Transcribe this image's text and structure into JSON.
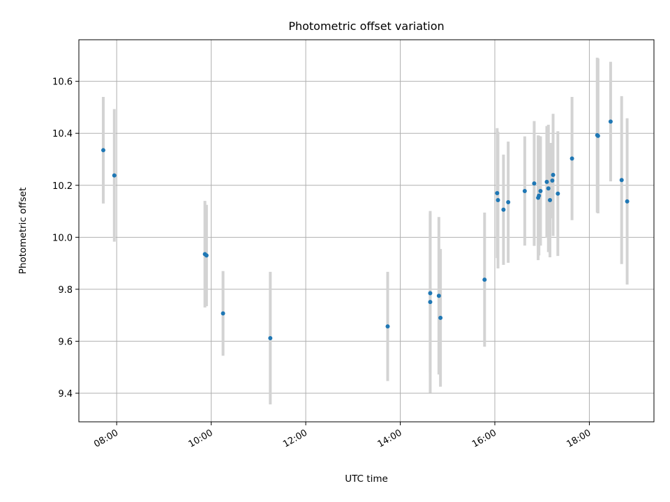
{
  "chart_data": {
    "type": "scatter",
    "title": "Photometric offset variation",
    "xlabel": "UTC time",
    "ylabel": "Photometric offset",
    "x_unit": "HH:MM",
    "x_ticks": [
      "08:00",
      "10:00",
      "12:00",
      "14:00",
      "16:00",
      "18:00"
    ],
    "y_ticks": [
      "9.4",
      "9.6",
      "9.8",
      "10.0",
      "10.2",
      "10.4",
      "10.6"
    ],
    "xlim": [
      "07:12",
      "19:22"
    ],
    "ylim": [
      9.29,
      10.76
    ],
    "grid": true,
    "marker_color": "#1f77b4",
    "errorbar_color": "#d3d3d3",
    "points": [
      {
        "x": "07:43",
        "y": 10.335,
        "err": 0.205
      },
      {
        "x": "07:57",
        "y": 10.238,
        "err": 0.255
      },
      {
        "x": "09:52",
        "y": 9.935,
        "err": 0.205
      },
      {
        "x": "09:54",
        "y": 9.93,
        "err": 0.195
      },
      {
        "x": "10:15",
        "y": 9.707,
        "err": 0.163
      },
      {
        "x": "11:15",
        "y": 9.612,
        "err": 0.255
      },
      {
        "x": "13:44",
        "y": 9.657,
        "err": 0.21
      },
      {
        "x": "14:38",
        "y": 9.785,
        "err": 0.305
      },
      {
        "x": "14:38",
        "y": 9.751,
        "err": 0.35
      },
      {
        "x": "14:49",
        "y": 9.775,
        "err": 0.303
      },
      {
        "x": "14:51",
        "y": 9.69,
        "err": 0.265
      },
      {
        "x": "15:47",
        "y": 9.837,
        "err": 0.258
      },
      {
        "x": "16:03",
        "y": 10.17,
        "err": 0.25
      },
      {
        "x": "16:04",
        "y": 10.143,
        "err": 0.263
      },
      {
        "x": "16:11",
        "y": 10.106,
        "err": 0.212
      },
      {
        "x": "16:17",
        "y": 10.135,
        "err": 0.233
      },
      {
        "x": "16:38",
        "y": 10.178,
        "err": 0.21
      },
      {
        "x": "16:50",
        "y": 10.207,
        "err": 0.24
      },
      {
        "x": "16:55",
        "y": 10.152,
        "err": 0.24
      },
      {
        "x": "16:56",
        "y": 10.16,
        "err": 0.23
      },
      {
        "x": "16:58",
        "y": 10.178,
        "err": 0.21
      },
      {
        "x": "17:06",
        "y": 10.213,
        "err": 0.215
      },
      {
        "x": "17:08",
        "y": 10.188,
        "err": 0.245
      },
      {
        "x": "17:10",
        "y": 10.143,
        "err": 0.22
      },
      {
        "x": "17:13",
        "y": 10.218,
        "err": 0.145
      },
      {
        "x": "17:14",
        "y": 10.24,
        "err": 0.235
      },
      {
        "x": "17:20",
        "y": 10.168,
        "err": 0.24
      },
      {
        "x": "17:38",
        "y": 10.303,
        "err": 0.237
      },
      {
        "x": "18:10",
        "y": 10.393,
        "err": 0.298
      },
      {
        "x": "18:11",
        "y": 10.39,
        "err": 0.298
      },
      {
        "x": "18:27",
        "y": 10.445,
        "err": 0.23
      },
      {
        "x": "18:41",
        "y": 10.22,
        "err": 0.323
      },
      {
        "x": "18:48",
        "y": 10.138,
        "err": 0.32
      }
    ]
  }
}
